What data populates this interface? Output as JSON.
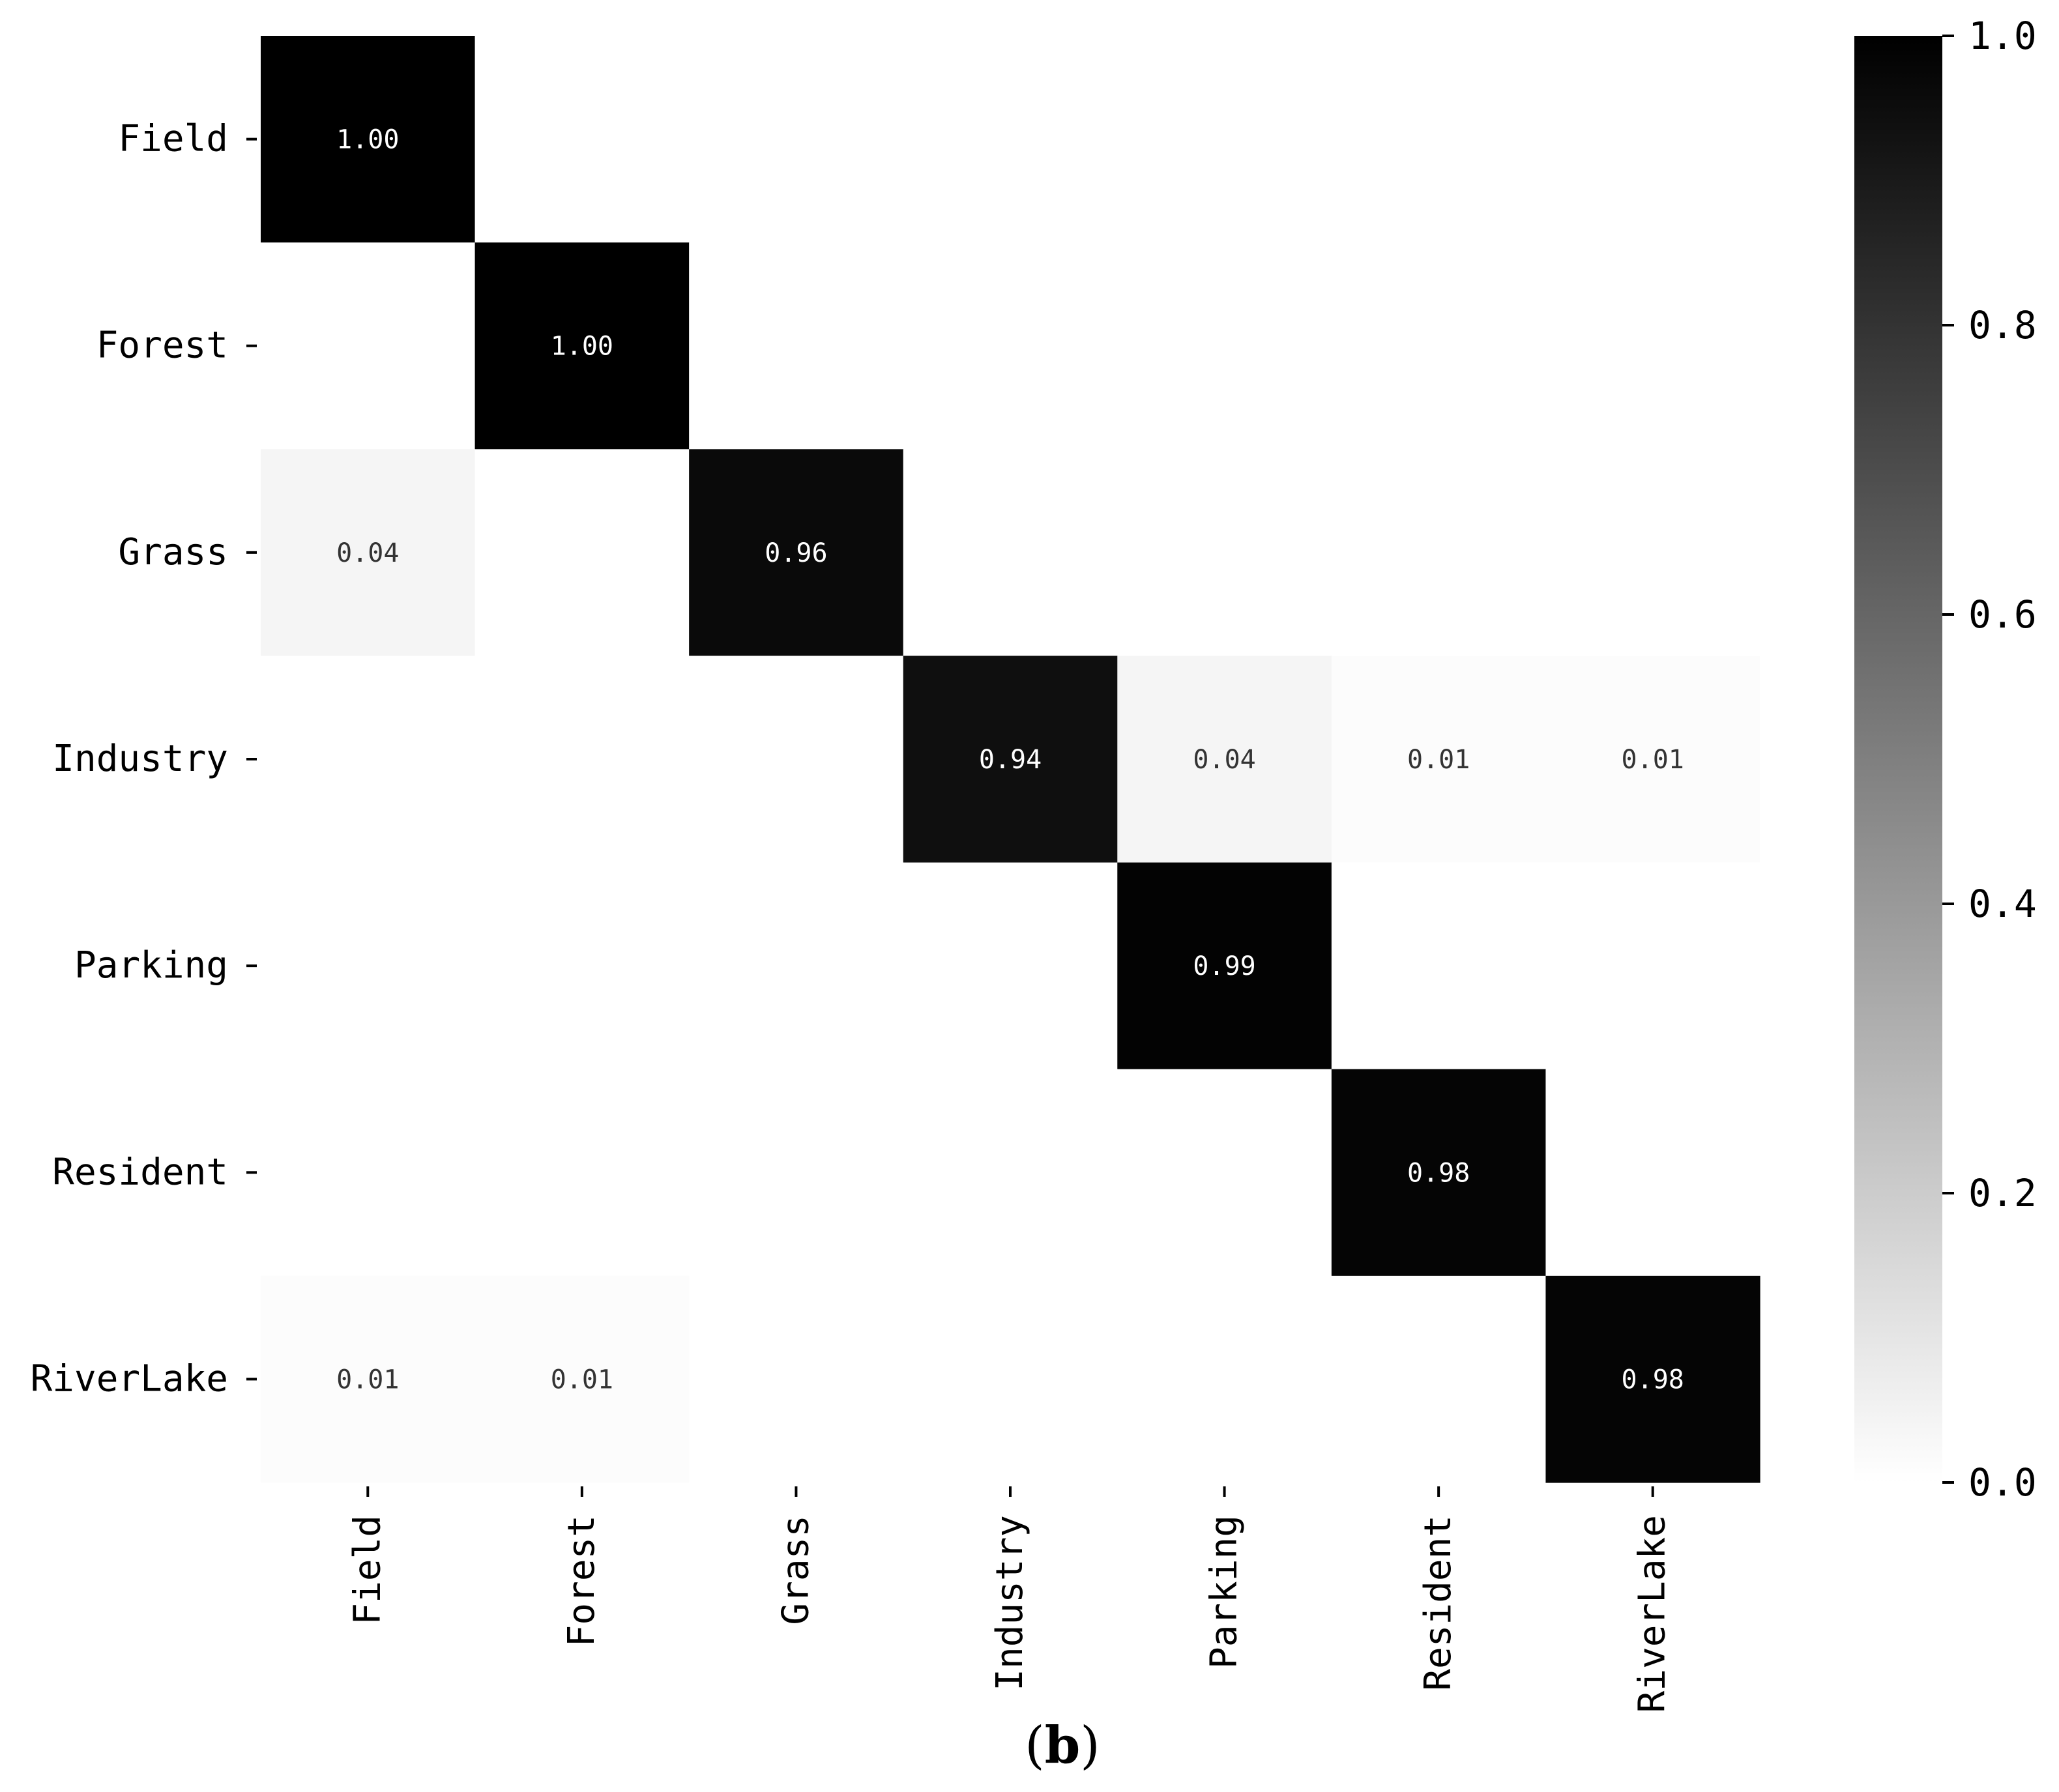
{
  "chart_data": {
    "type": "heatmap",
    "title": "",
    "xlabel": "",
    "ylabel": "",
    "rows": [
      "Field",
      "Forest",
      "Grass",
      "Industry",
      "Parking",
      "Resident",
      "RiverLake"
    ],
    "columns": [
      "Field",
      "Forest",
      "Grass",
      "Industry",
      "Parking",
      "Resident",
      "RiverLake"
    ],
    "values": [
      [
        1.0,
        0,
        0,
        0,
        0,
        0,
        0
      ],
      [
        0,
        1.0,
        0,
        0,
        0,
        0,
        0
      ],
      [
        0.04,
        0,
        0.96,
        0,
        0,
        0,
        0
      ],
      [
        0,
        0,
        0,
        0.94,
        0.04,
        0.01,
        0.01
      ],
      [
        0,
        0,
        0,
        0,
        0.99,
        0,
        0
      ],
      [
        0,
        0,
        0,
        0,
        0,
        0.98,
        0
      ],
      [
        0.01,
        0.01,
        0,
        0,
        0,
        0,
        0.98
      ]
    ],
    "annotations": [
      [
        "1.00",
        "",
        "",
        "",
        "",
        "",
        ""
      ],
      [
        "",
        "1.00",
        "",
        "",
        "",
        "",
        ""
      ],
      [
        "0.04",
        "",
        "0.96",
        "",
        "",
        "",
        ""
      ],
      [
        "",
        "",
        "",
        "0.94",
        "0.04",
        "0.01",
        "0.01"
      ],
      [
        "",
        "",
        "",
        "",
        "0.99",
        "",
        ""
      ],
      [
        "",
        "",
        "",
        "",
        "",
        "0.98",
        ""
      ],
      [
        "0.01",
        "0.01",
        "",
        "",
        "",
        "",
        "0.98"
      ]
    ],
    "colorbar": {
      "range": [
        0.0,
        1.0
      ],
      "ticks": [
        "0.0",
        "0.2",
        "0.4",
        "0.6",
        "0.8",
        "1.0"
      ],
      "colors": [
        "#ffffff",
        "#000000"
      ]
    },
    "grid": false,
    "legend": "none"
  },
  "caption": {
    "open": "(",
    "letter": "b",
    "close": ")"
  }
}
